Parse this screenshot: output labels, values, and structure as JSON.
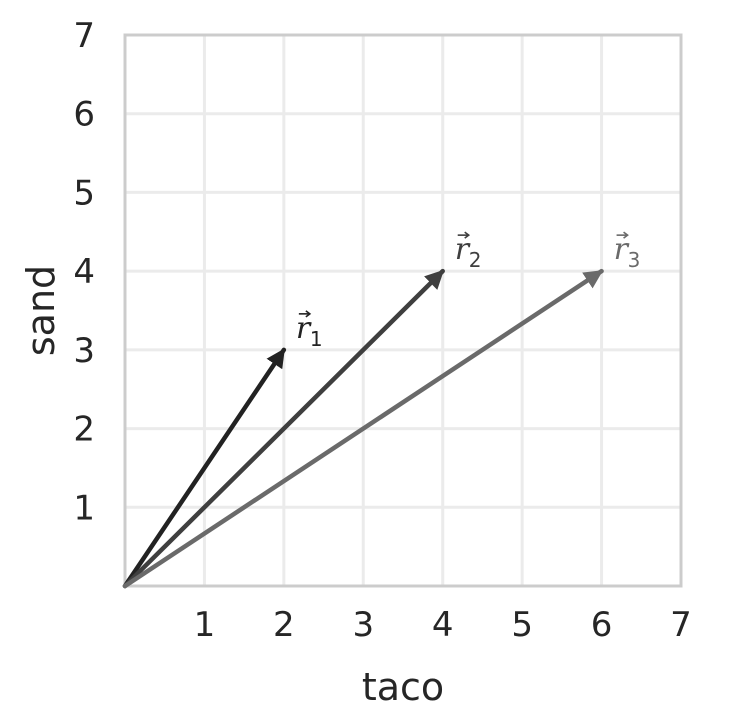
{
  "chart_data": {
    "type": "quiver",
    "xlabel": "taco",
    "ylabel": "sand",
    "xlim": [
      0,
      7
    ],
    "ylim": [
      0,
      7
    ],
    "xticks": [
      1,
      2,
      3,
      4,
      5,
      6,
      7
    ],
    "yticks": [
      1,
      2,
      3,
      4,
      5,
      6,
      7
    ],
    "grid": true,
    "vectors": [
      {
        "label": "r",
        "subscript": "1",
        "origin": [
          0,
          0
        ],
        "tip": [
          2,
          3
        ],
        "color": "#222222"
      },
      {
        "label": "r",
        "subscript": "2",
        "origin": [
          0,
          0
        ],
        "tip": [
          4,
          4
        ],
        "color": "#3f3f3f"
      },
      {
        "label": "r",
        "subscript": "3",
        "origin": [
          0,
          0
        ],
        "tip": [
          6,
          4
        ],
        "color": "#6a6a6a"
      }
    ]
  }
}
